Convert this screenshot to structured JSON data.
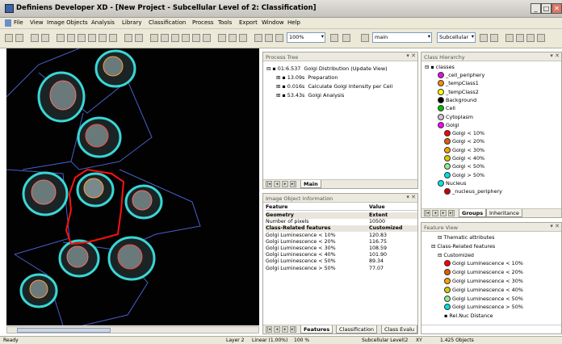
{
  "window": {
    "title": "Definiens Developer XD - [New Project - Subcellular Level of 2: Classification]"
  },
  "menu": [
    "File",
    "View",
    "Image Objects",
    "Analysis",
    "Library",
    "Classification",
    "Process",
    "Tools",
    "Export",
    "Window",
    "Help"
  ],
  "toolbar": {
    "zoom": "100%",
    "level_map": "main",
    "level": "Subcellular"
  },
  "process_tree": {
    "title": "Process Tree",
    "items": [
      {
        "time": "01:6.537",
        "label": "Golgi Distribution (Update View)"
      },
      {
        "time": "13.09s",
        "label": "Preparation"
      },
      {
        "time": "0.016s",
        "label": "Calculate Golgi Intensity per Cell"
      },
      {
        "time": "53.43s",
        "label": "Golgi Analysis"
      }
    ],
    "tab": "Main"
  },
  "class_hierarchy": {
    "title": "Class Hierarchy",
    "root": "classes",
    "classes": [
      {
        "name": "_cell_periphery",
        "color": "#e010e0"
      },
      {
        "name": "_tempClass1",
        "color": "#ff8c00"
      },
      {
        "name": "_tempClass2",
        "color": "#ffff00"
      },
      {
        "name": "Background",
        "color": "#000000"
      },
      {
        "name": "Cell",
        "color": "#00c000"
      },
      {
        "name": "Cytoplasm",
        "color": "#c8c8c8"
      },
      {
        "name": "Golgi",
        "color": "#ff00ff"
      },
      {
        "name": "Golgi < 10%",
        "color": "#ff0000"
      },
      {
        "name": "Golgi < 20%",
        "color": "#e06000"
      },
      {
        "name": "Golgi < 30%",
        "color": "#ffa000"
      },
      {
        "name": "Golgi < 40%",
        "color": "#d0d000"
      },
      {
        "name": "Golgi < 50%",
        "color": "#90ee90"
      },
      {
        "name": "Golgi > 50%",
        "color": "#00e0e0"
      },
      {
        "name": "Nucleus",
        "color": "#00e5ee"
      },
      {
        "name": "_nucleus_periphery",
        "color": "#cc0000"
      }
    ],
    "tabs": [
      "Groups",
      "Inheritance"
    ]
  },
  "image_object_info": {
    "title": "Image Object Information",
    "columns": [
      "Feature",
      "Value"
    ],
    "rows": [
      {
        "feature": "Geometry",
        "value": "Extent",
        "bold": true
      },
      {
        "feature": "Number of pixels",
        "value": "10500",
        "bold": false
      },
      {
        "feature": "Class-Related features",
        "value": "Customized",
        "bold": true
      },
      {
        "feature": "Golgi Luminescence < 10%",
        "value": "120.83",
        "bold": false
      },
      {
        "feature": "Golgi Luminescence < 20%",
        "value": "116.75",
        "bold": false
      },
      {
        "feature": "Golgi Luminescence < 30%",
        "value": "108.59",
        "bold": false
      },
      {
        "feature": "Golgi Luminescence < 40%",
        "value": "101.90",
        "bold": false
      },
      {
        "feature": "Golgi Luminescence < 50%",
        "value": "89.34",
        "bold": false
      },
      {
        "feature": "Golgi Luminescence > 50%",
        "value": "77.07",
        "bold": false
      }
    ],
    "tabs": [
      "Features",
      "Classification",
      "Class Evalu"
    ]
  },
  "feature_view": {
    "title": "Feature View",
    "items": [
      {
        "label": "Thematic attributes",
        "color": ""
      },
      {
        "label": "Class-Related features",
        "color": ""
      },
      {
        "label": "Customized",
        "color": ""
      },
      {
        "label": "Golgi Luminescence < 10%",
        "color": "#ff0000"
      },
      {
        "label": "Golgi Luminescence < 20%",
        "color": "#e06000"
      },
      {
        "label": "Golgi Luminescence < 30%",
        "color": "#ffa000"
      },
      {
        "label": "Golgi Luminescence < 40%",
        "color": "#d0d000"
      },
      {
        "label": "Golgi Luminescence < 50%",
        "color": "#90ee90"
      },
      {
        "label": "Golgi Luminescence > 50%",
        "color": "#00e0e0"
      },
      {
        "label": "Rel.Nuc Distance",
        "color": ""
      }
    ]
  },
  "status": {
    "ready": "Ready",
    "layer": "Layer 2",
    "linear": "Linear (1.00%)",
    "zoom": "100 %",
    "level": "Subcellular Level(2",
    "xy": "XY",
    "objects": "1.425 Objects"
  }
}
